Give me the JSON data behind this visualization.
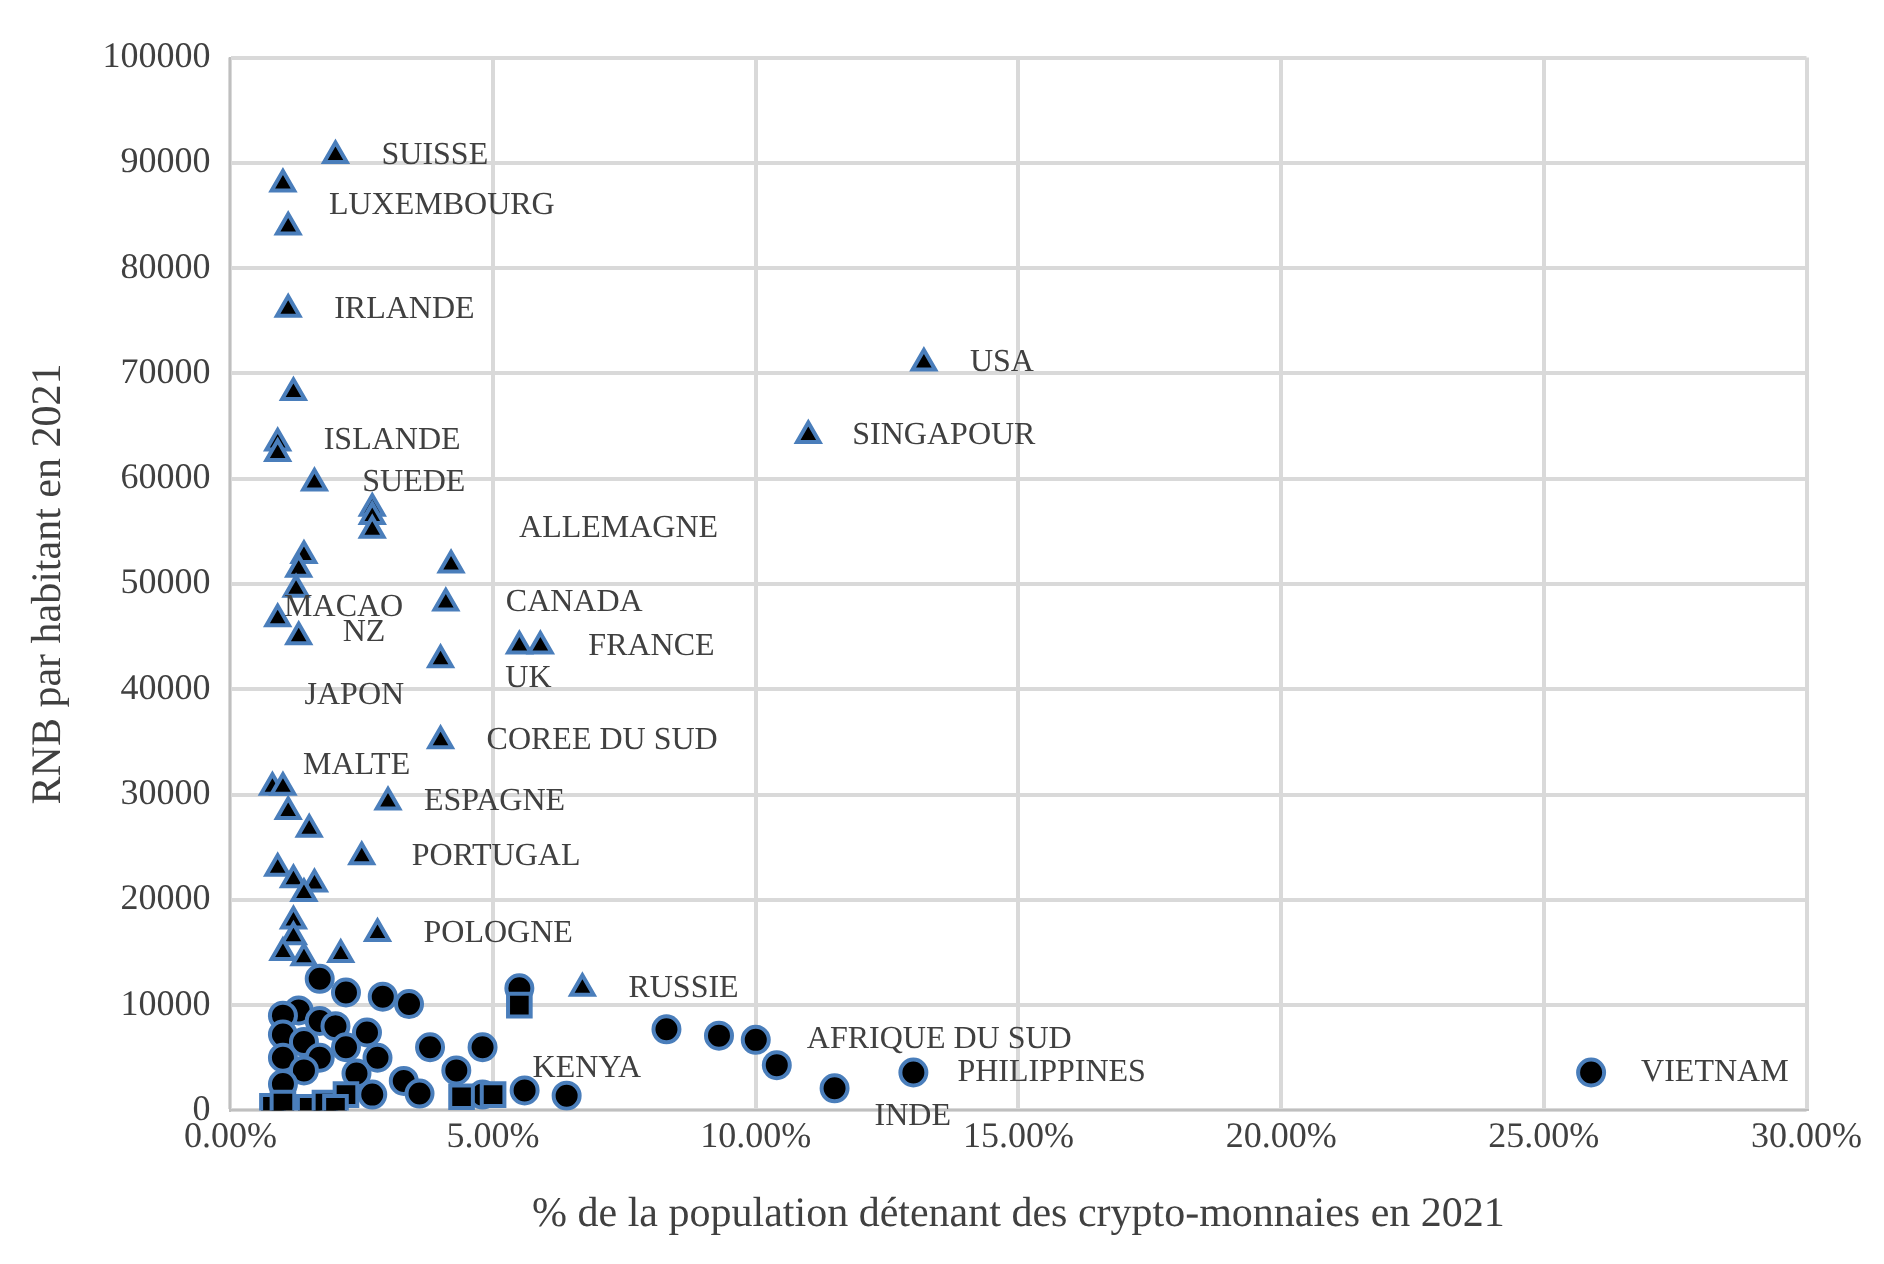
{
  "chart_data": {
    "type": "scatter",
    "xlabel": "% de la population détenant des crypto-monnaies en 2021",
    "ylabel": "RNB par habitant en 2021",
    "xlim": [
      0,
      30
    ],
    "xticks": [
      {
        "value": 0,
        "label": "0.00%"
      },
      {
        "value": 5,
        "label": "5.00%"
      },
      {
        "value": 10,
        "label": "10.00%"
      },
      {
        "value": 15,
        "label": "15.00%"
      },
      {
        "value": 20,
        "label": "20.00%"
      },
      {
        "value": 25,
        "label": "25.00%"
      },
      {
        "value": 30,
        "label": "30.00%"
      }
    ],
    "ylim": [
      0,
      100000
    ],
    "yticks": [
      0,
      10000,
      20000,
      30000,
      40000,
      50000,
      60000,
      70000,
      80000,
      90000,
      100000
    ],
    "grid": true,
    "legend": false,
    "series": [
      {
        "type": "scatter",
        "marker": "triangle",
        "color": "#000000",
        "x": [
          2.0,
          1.0,
          1.1,
          1.1,
          1.2,
          0.9,
          0.9,
          1.6,
          2.7,
          2.7,
          2.7,
          4.2,
          13.2,
          11.0,
          1.4,
          1.3,
          1.25,
          4.1,
          0.9,
          1.3,
          5.5,
          5.9,
          4.0,
          4.0,
          0.8,
          1.0,
          1.1,
          1.5,
          3.0,
          2.5,
          0.9,
          1.2,
          1.6,
          1.4,
          2.8,
          1.2,
          1.2,
          1.0,
          1.4,
          2.1,
          6.7
        ],
        "values": [
          90700,
          88000,
          83900,
          76100,
          68200,
          63400,
          62400,
          59600,
          57200,
          56400,
          55100,
          51800,
          71000,
          64100,
          52700,
          51400,
          49500,
          48200,
          46700,
          45000,
          44100,
          44100,
          42800,
          35100,
          30700,
          30700,
          28400,
          26700,
          29300,
          24100,
          23000,
          21900,
          21500,
          20600,
          16800,
          18000,
          16500,
          15000,
          14500,
          14800,
          11600
        ]
      },
      {
        "type": "scatter",
        "marker": "circle",
        "color": "#000000",
        "x": [
          5.5,
          1.7,
          2.2,
          2.9,
          3.4,
          1.3,
          1.0,
          1.7,
          2.0,
          2.6,
          1.0,
          1.4,
          2.2,
          3.8,
          4.8,
          1.0,
          1.7,
          2.8,
          1.4,
          2.4,
          4.3,
          4.8,
          3.3,
          3.6,
          5.6,
          6.4,
          8.3,
          9.3,
          10.0,
          10.4,
          11.5,
          13.0,
          25.9,
          1.0,
          2.7
        ],
        "values": [
          11600,
          12500,
          11200,
          10800,
          10100,
          9500,
          9000,
          8500,
          8000,
          7400,
          7200,
          6500,
          6000,
          6000,
          6000,
          5000,
          5000,
          5000,
          3800,
          3500,
          3800,
          1500,
          2800,
          1600,
          1900,
          1400,
          7700,
          7100,
          6700,
          4300,
          2100,
          3600,
          3600,
          2500,
          1500
        ]
      },
      {
        "type": "scatter",
        "marker": "square",
        "color": "#000000",
        "x": [
          5.5,
          0.8,
          1.0,
          1.5,
          1.8,
          2.2,
          2.0,
          4.4,
          5.0
        ],
        "values": [
          10000,
          400,
          700,
          300,
          700,
          1500,
          300,
          1300,
          1500
        ]
      }
    ],
    "annotations": [
      {
        "text": "SUISSE",
        "x": 2.0,
        "y": 90700
      },
      {
        "text": "LUXEMBOURG",
        "x": 1.0,
        "y": 88000
      },
      {
        "text": "IRLANDE",
        "x": 1.1,
        "y": 76100
      },
      {
        "text": "ISLANDE",
        "x": 0.9,
        "y": 63400
      },
      {
        "text": "SUEDE",
        "x": 2.7,
        "y": 57200
      },
      {
        "text": "ALLEMAGNE",
        "x": 4.2,
        "y": 51800
      },
      {
        "text": "USA",
        "x": 13.2,
        "y": 71000
      },
      {
        "text": "SINGAPOUR",
        "x": 11.0,
        "y": 64100
      },
      {
        "text": "MACAO",
        "x": 1.25,
        "y": 49500
      },
      {
        "text": "CANADA",
        "x": 4.1,
        "y": 48200
      },
      {
        "text": "NZ",
        "x": 1.3,
        "y": 45000
      },
      {
        "text": "FRANCE",
        "x": 5.9,
        "y": 44100
      },
      {
        "text": "UK",
        "x": 5.5,
        "y": 44100
      },
      {
        "text": "JAPON",
        "x": 4.0,
        "y": 42800
      },
      {
        "text": "COREE DU SUD",
        "x": 4.0,
        "y": 35100
      },
      {
        "text": "MALTE",
        "x": 1.0,
        "y": 30700
      },
      {
        "text": "ESPAGNE",
        "x": 3.0,
        "y": 29300
      },
      {
        "text": "PORTUGAL",
        "x": 2.5,
        "y": 24100
      },
      {
        "text": "POLOGNE",
        "x": 2.8,
        "y": 16800
      },
      {
        "text": "RUSSIE",
        "x": 6.7,
        "y": 11600
      },
      {
        "text": "KENYA",
        "x": 4.8,
        "y": 1500
      },
      {
        "text": "AFRIQUE DU SUD",
        "x": 10.4,
        "y": 4300
      },
      {
        "text": "PHILIPPINES",
        "x": 13.0,
        "y": 3600
      },
      {
        "text": "INDE",
        "x": 11.5,
        "y": 2100
      },
      {
        "text": "VIETNAM",
        "x": 25.9,
        "y": 3600
      }
    ]
  }
}
